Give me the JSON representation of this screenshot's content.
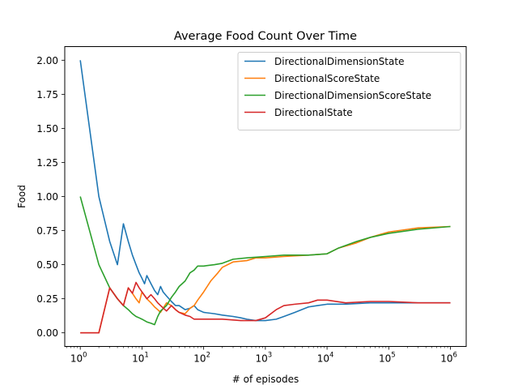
{
  "chart_data": {
    "type": "line",
    "title": "Average Food Count Over Time",
    "xlabel": "# of episodes",
    "ylabel": "Food",
    "xscale": "log",
    "xlim": [
      0.56,
      1800000
    ],
    "ylim": [
      -0.1,
      2.1
    ],
    "x_ticks": [
      1,
      10,
      100,
      1000,
      10000,
      100000,
      1000000
    ],
    "x_tick_labels": [
      {
        "base": "10",
        "exp": "0"
      },
      {
        "base": "10",
        "exp": "1"
      },
      {
        "base": "10",
        "exp": "2"
      },
      {
        "base": "10",
        "exp": "3"
      },
      {
        "base": "10",
        "exp": "4"
      },
      {
        "base": "10",
        "exp": "5"
      },
      {
        "base": "10",
        "exp": "6"
      }
    ],
    "y_ticks": [
      0.0,
      0.25,
      0.5,
      0.75,
      1.0,
      1.25,
      1.5,
      1.75,
      2.0
    ],
    "y_tick_labels": [
      "0.00",
      "0.25",
      "0.50",
      "0.75",
      "1.00",
      "1.25",
      "1.50",
      "1.75",
      "2.00"
    ],
    "grid": false,
    "legend_position": "top-right",
    "series": [
      {
        "name": "DirectionalDimensionState",
        "color": "#1f77b4",
        "points": [
          [
            1,
            2.0
          ],
          [
            2,
            1.0
          ],
          [
            3,
            0.67
          ],
          [
            4,
            0.5
          ],
          [
            5,
            0.8
          ],
          [
            6,
            0.67
          ],
          [
            7,
            0.57
          ],
          [
            8,
            0.5
          ],
          [
            9,
            0.44
          ],
          [
            10,
            0.4
          ],
          [
            11,
            0.36
          ],
          [
            12,
            0.42
          ],
          [
            14,
            0.36
          ],
          [
            16,
            0.31
          ],
          [
            18,
            0.28
          ],
          [
            20,
            0.34
          ],
          [
            22,
            0.3
          ],
          [
            25,
            0.27
          ],
          [
            30,
            0.23
          ],
          [
            35,
            0.2
          ],
          [
            40,
            0.2
          ],
          [
            50,
            0.17
          ],
          [
            60,
            0.18
          ],
          [
            70,
            0.2
          ],
          [
            80,
            0.17
          ],
          [
            100,
            0.15
          ],
          [
            150,
            0.14
          ],
          [
            200,
            0.13
          ],
          [
            300,
            0.12
          ],
          [
            400,
            0.11
          ],
          [
            500,
            0.1
          ],
          [
            700,
            0.09
          ],
          [
            1000,
            0.09
          ],
          [
            1500,
            0.1
          ],
          [
            2000,
            0.12
          ],
          [
            3000,
            0.15
          ],
          [
            5000,
            0.19
          ],
          [
            7000,
            0.2
          ],
          [
            10000,
            0.21
          ],
          [
            20000,
            0.21
          ],
          [
            50000,
            0.22
          ],
          [
            100000,
            0.22
          ],
          [
            300000,
            0.22
          ],
          [
            1000000,
            0.22
          ]
        ]
      },
      {
        "name": "DirectionalScoreState",
        "color": "#ff7f0e",
        "points": [
          [
            1,
            0.0
          ],
          [
            2,
            0.0
          ],
          [
            3,
            0.33
          ],
          [
            4,
            0.25
          ],
          [
            5,
            0.2
          ],
          [
            6,
            0.33
          ],
          [
            7,
            0.29
          ],
          [
            8,
            0.25
          ],
          [
            9,
            0.22
          ],
          [
            10,
            0.3
          ],
          [
            12,
            0.25
          ],
          [
            14,
            0.22
          ],
          [
            16,
            0.19
          ],
          [
            18,
            0.17
          ],
          [
            20,
            0.15
          ],
          [
            25,
            0.22
          ],
          [
            30,
            0.2
          ],
          [
            35,
            0.17
          ],
          [
            40,
            0.15
          ],
          [
            50,
            0.14
          ],
          [
            60,
            0.18
          ],
          [
            70,
            0.2
          ],
          [
            80,
            0.24
          ],
          [
            100,
            0.3
          ],
          [
            130,
            0.38
          ],
          [
            170,
            0.44
          ],
          [
            200,
            0.48
          ],
          [
            300,
            0.52
          ],
          [
            500,
            0.53
          ],
          [
            700,
            0.55
          ],
          [
            1000,
            0.55
          ],
          [
            2000,
            0.56
          ],
          [
            5000,
            0.57
          ],
          [
            10000,
            0.58
          ],
          [
            15000,
            0.62
          ],
          [
            30000,
            0.66
          ],
          [
            50000,
            0.7
          ],
          [
            100000,
            0.74
          ],
          [
            300000,
            0.77
          ],
          [
            1000000,
            0.78
          ]
        ]
      },
      {
        "name": "DirectionalDimensionScoreState",
        "color": "#2ca02c",
        "points": [
          [
            1,
            1.0
          ],
          [
            2,
            0.5
          ],
          [
            3,
            0.33
          ],
          [
            4,
            0.25
          ],
          [
            5,
            0.2
          ],
          [
            6,
            0.17
          ],
          [
            7,
            0.14
          ],
          [
            8,
            0.12
          ],
          [
            9,
            0.11
          ],
          [
            10,
            0.1
          ],
          [
            12,
            0.08
          ],
          [
            14,
            0.07
          ],
          [
            16,
            0.06
          ],
          [
            18,
            0.12
          ],
          [
            20,
            0.16
          ],
          [
            25,
            0.2
          ],
          [
            30,
            0.26
          ],
          [
            35,
            0.3
          ],
          [
            40,
            0.34
          ],
          [
            50,
            0.38
          ],
          [
            60,
            0.44
          ],
          [
            70,
            0.46
          ],
          [
            80,
            0.49
          ],
          [
            100,
            0.49
          ],
          [
            150,
            0.5
          ],
          [
            200,
            0.51
          ],
          [
            300,
            0.54
          ],
          [
            500,
            0.55
          ],
          [
            1000,
            0.56
          ],
          [
            2000,
            0.57
          ],
          [
            5000,
            0.57
          ],
          [
            10000,
            0.58
          ],
          [
            15000,
            0.62
          ],
          [
            30000,
            0.67
          ],
          [
            50000,
            0.7
          ],
          [
            100000,
            0.73
          ],
          [
            300000,
            0.76
          ],
          [
            1000000,
            0.78
          ]
        ]
      },
      {
        "name": "DirectionalState",
        "color": "#d62728",
        "points": [
          [
            1,
            0.0
          ],
          [
            2,
            0.0
          ],
          [
            3,
            0.33
          ],
          [
            4,
            0.25
          ],
          [
            5,
            0.2
          ],
          [
            6,
            0.33
          ],
          [
            7,
            0.29
          ],
          [
            8,
            0.37
          ],
          [
            9,
            0.33
          ],
          [
            10,
            0.3
          ],
          [
            12,
            0.25
          ],
          [
            14,
            0.28
          ],
          [
            16,
            0.25
          ],
          [
            18,
            0.22
          ],
          [
            20,
            0.2
          ],
          [
            25,
            0.16
          ],
          [
            30,
            0.2
          ],
          [
            35,
            0.17
          ],
          [
            40,
            0.15
          ],
          [
            50,
            0.13
          ],
          [
            60,
            0.12
          ],
          [
            70,
            0.1
          ],
          [
            100,
            0.1
          ],
          [
            200,
            0.1
          ],
          [
            400,
            0.09
          ],
          [
            700,
            0.09
          ],
          [
            1000,
            0.11
          ],
          [
            1500,
            0.17
          ],
          [
            2000,
            0.2
          ],
          [
            3000,
            0.21
          ],
          [
            5000,
            0.22
          ],
          [
            7000,
            0.24
          ],
          [
            10000,
            0.24
          ],
          [
            20000,
            0.22
          ],
          [
            50000,
            0.23
          ],
          [
            100000,
            0.23
          ],
          [
            300000,
            0.22
          ],
          [
            1000000,
            0.22
          ]
        ]
      }
    ]
  }
}
